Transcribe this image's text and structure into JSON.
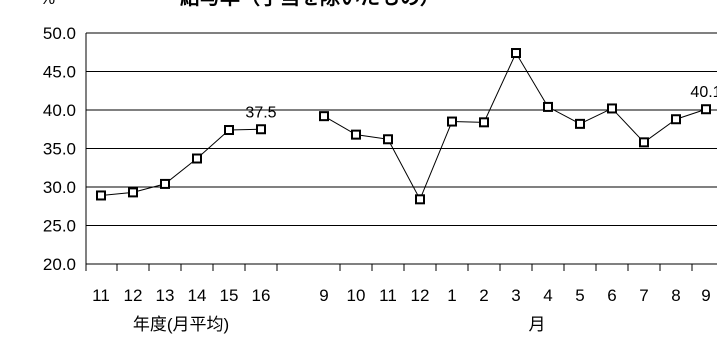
{
  "chart_data": {
    "type": "line",
    "title": "給与率（手当を除いたもの）",
    "y_unit": "%",
    "ylim": [
      20.0,
      50.0
    ],
    "y_ticks": [
      "20.0",
      "25.0",
      "30.0",
      "35.0",
      "40.0",
      "45.0",
      "50.0"
    ],
    "grid": true,
    "x_group_labels": [
      "年度(月平均)",
      "月"
    ],
    "series": [
      {
        "group": "annual",
        "categories": [
          "11",
          "12",
          "13",
          "14",
          "15",
          "16"
        ],
        "values": [
          28.9,
          29.3,
          30.4,
          33.7,
          37.4,
          37.5
        ]
      },
      {
        "group": "monthly",
        "categories": [
          "9",
          "10",
          "11",
          "12",
          "1",
          "2",
          "3",
          "4",
          "5",
          "6",
          "7",
          "8",
          "9"
        ],
        "values": [
          39.2,
          36.8,
          36.2,
          28.4,
          38.5,
          38.4,
          47.4,
          40.4,
          38.2,
          40.2,
          35.8,
          38.8,
          40.1
        ]
      }
    ],
    "data_labels": [
      {
        "group": "annual",
        "index": 5,
        "text": "37.5"
      },
      {
        "group": "monthly",
        "index": 12,
        "text": "40.1"
      }
    ]
  }
}
